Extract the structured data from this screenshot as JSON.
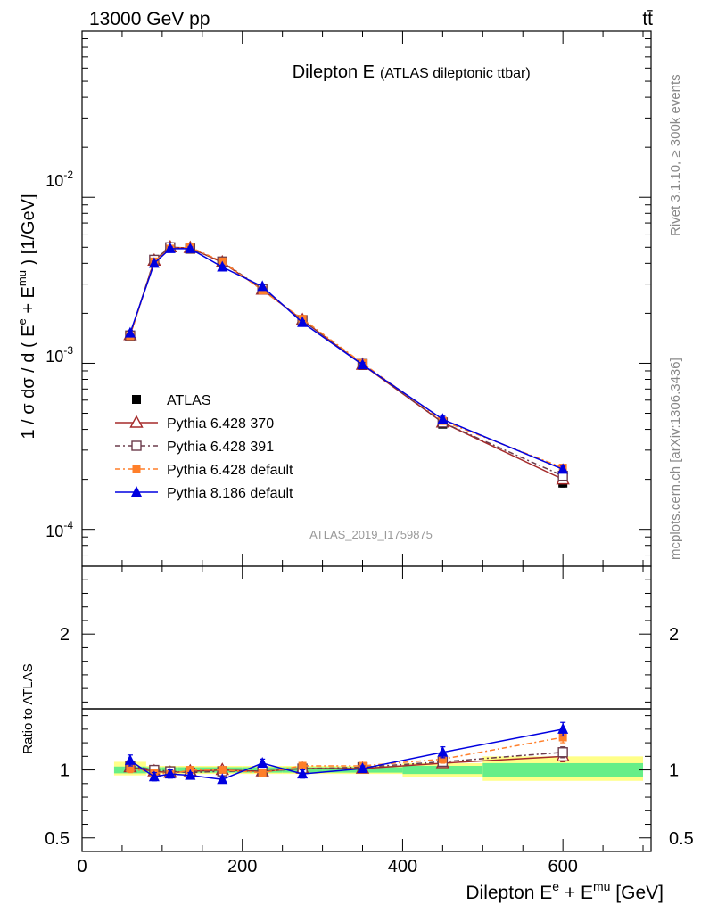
{
  "header": {
    "left": "13000 GeV pp",
    "right": "tt̄"
  },
  "side_labels": {
    "rivet": "Rivet 3.1.10, ≥ 300k events",
    "mcplots": "mcplots.cern.ch [arXiv:1306.3436]"
  },
  "colors": {
    "atlas": "#000000",
    "p370": "#a52a2a",
    "p391": "#6b3b4b",
    "pdef": "#ff7f2a",
    "p8": "#0000e0",
    "band_inner": "#66ee88",
    "band_outer": "#ffff88"
  },
  "chart_data": [
    {
      "type": "line",
      "title": "Dilepton E",
      "subtitle": "(ATLAS dileptonic ttbar)",
      "analysis_label": "ATLAS_2019_I1759875",
      "ylabel": "1 / σ  dσ / d ( E^e + E^mu ) [1/GeV]",
      "yscale": "log",
      "ylim": [
        6e-05,
        0.1
      ],
      "xlim": [
        0,
        710
      ],
      "y_tick_labels": [
        "10^-4",
        "10^-3",
        "10^-2"
      ],
      "legend_position": "center-left",
      "x": [
        60,
        90,
        110,
        135,
        175,
        225,
        275,
        350,
        450,
        600
      ],
      "series": [
        {
          "name": "ATLAS",
          "key": "atlas",
          "values": [
            0.00145,
            0.0042,
            0.005,
            0.005,
            0.0041,
            0.0028,
            0.0018,
            0.00097,
            0.00043,
            0.00019
          ],
          "errors": [
            6e-05,
            0.00012,
            0.00013,
            0.00013,
            0.00011,
            8e-05,
            5e-05,
            3e-05,
            2e-05,
            1e-05
          ]
        },
        {
          "name": "Pythia 6.428 370",
          "key": "p370",
          "values": [
            0.00148,
            0.00415,
            0.005,
            0.00495,
            0.00405,
            0.00278,
            0.00182,
            0.00098,
            0.00044,
            0.0002
          ],
          "errors": [
            5e-05,
            0.0001,
            0.0001,
            0.0001,
            0.0001,
            7e-05,
            5e-05,
            3e-05,
            2e-05,
            1e-05
          ]
        },
        {
          "name": "Pythia 6.428 391",
          "key": "p391",
          "values": [
            0.00147,
            0.0042,
            0.005,
            0.0049,
            0.0041,
            0.0028,
            0.00182,
            0.00099,
            0.00044,
            0.00021
          ],
          "errors": [
            5e-05,
            0.0001,
            0.0001,
            0.0001,
            0.0001,
            7e-05,
            5e-05,
            3e-05,
            2e-05,
            1e-05
          ]
        },
        {
          "name": "Pythia 6.428 default",
          "key": "pdef",
          "values": [
            0.00146,
            0.0041,
            0.0049,
            0.005,
            0.0041,
            0.00275,
            0.00185,
            0.001,
            0.00045,
            0.000235
          ],
          "errors": [
            5e-05,
            0.0001,
            0.0001,
            0.0001,
            0.0001,
            7e-05,
            5e-05,
            3e-05,
            2e-05,
            1e-05
          ]
        },
        {
          "name": "Pythia 8.186 default",
          "key": "p8",
          "values": [
            0.00152,
            0.004,
            0.0049,
            0.0049,
            0.0038,
            0.0029,
            0.00176,
            0.00098,
            0.00046,
            0.00023
          ],
          "errors": [
            6e-05,
            0.00012,
            0.00012,
            0.00012,
            0.0001,
            8e-05,
            5e-05,
            3e-05,
            2e-05,
            1e-05
          ]
        }
      ]
    },
    {
      "type": "line",
      "ylabel": "Ratio to ATLAS",
      "xlabel": "Dilepton E^e + E^mu [GeV]",
      "ylim": [
        0.4,
        2.5
      ],
      "xlim": [
        0,
        710
      ],
      "x_ticks": [
        0,
        200,
        400,
        600
      ],
      "y_ticks": [
        0.5,
        1,
        2
      ],
      "bands": [
        {
          "xmin": 40,
          "xmax": 80,
          "inner": [
            0.975,
            1.025
          ],
          "outer": [
            0.96,
            1.06
          ]
        },
        {
          "xmin": 80,
          "xmax": 100,
          "inner": [
            0.98,
            1.02
          ],
          "outer": [
            0.97,
            1.03
          ]
        },
        {
          "xmin": 100,
          "xmax": 120,
          "inner": [
            0.98,
            1.02
          ],
          "outer": [
            0.97,
            1.03
          ]
        },
        {
          "xmin": 120,
          "xmax": 150,
          "inner": [
            0.98,
            1.02
          ],
          "outer": [
            0.97,
            1.03
          ]
        },
        {
          "xmin": 150,
          "xmax": 200,
          "inner": [
            0.98,
            1.02
          ],
          "outer": [
            0.97,
            1.03
          ]
        },
        {
          "xmin": 200,
          "xmax": 250,
          "inner": [
            0.98,
            1.02
          ],
          "outer": [
            0.97,
            1.03
          ]
        },
        {
          "xmin": 250,
          "xmax": 300,
          "inner": [
            0.98,
            1.02
          ],
          "outer": [
            0.97,
            1.03
          ]
        },
        {
          "xmin": 300,
          "xmax": 400,
          "inner": [
            0.98,
            1.02
          ],
          "outer": [
            0.97,
            1.03
          ]
        },
        {
          "xmin": 400,
          "xmax": 500,
          "inner": [
            0.97,
            1.03
          ],
          "outer": [
            0.95,
            1.05
          ]
        },
        {
          "xmin": 500,
          "xmax": 700,
          "inner": [
            0.95,
            1.05
          ],
          "outer": [
            0.92,
            1.1
          ]
        }
      ],
      "x": [
        60,
        90,
        110,
        135,
        175,
        225,
        275,
        350,
        450,
        600
      ],
      "series": [
        {
          "name": "Pythia 6.428 370",
          "key": "p370",
          "values": [
            1.02,
            0.99,
            0.98,
            0.99,
            1.0,
            0.99,
            1.01,
            1.01,
            1.05,
            1.1
          ],
          "errors": [
            0.03,
            0.02,
            0.02,
            0.02,
            0.02,
            0.02,
            0.02,
            0.02,
            0.03,
            0.04
          ]
        },
        {
          "name": "Pythia 6.428 391",
          "key": "p391",
          "values": [
            1.03,
            1.0,
            0.99,
            0.98,
            0.99,
            0.99,
            1.01,
            1.02,
            1.06,
            1.13
          ],
          "errors": [
            0.03,
            0.02,
            0.02,
            0.02,
            0.02,
            0.02,
            0.02,
            0.02,
            0.03,
            0.04
          ]
        },
        {
          "name": "Pythia 6.428 default",
          "key": "pdef",
          "values": [
            1.01,
            0.98,
            0.97,
            1.0,
            1.0,
            0.98,
            1.03,
            1.03,
            1.08,
            1.24
          ],
          "errors": [
            0.03,
            0.02,
            0.02,
            0.02,
            0.02,
            0.02,
            0.02,
            0.02,
            0.03,
            0.04
          ]
        },
        {
          "name": "Pythia 8.186 default",
          "key": "p8",
          "values": [
            1.07,
            0.95,
            0.97,
            0.96,
            0.93,
            1.05,
            0.97,
            1.01,
            1.13,
            1.3
          ],
          "errors": [
            0.04,
            0.03,
            0.03,
            0.02,
            0.02,
            0.03,
            0.03,
            0.02,
            0.04,
            0.05
          ]
        }
      ]
    }
  ]
}
